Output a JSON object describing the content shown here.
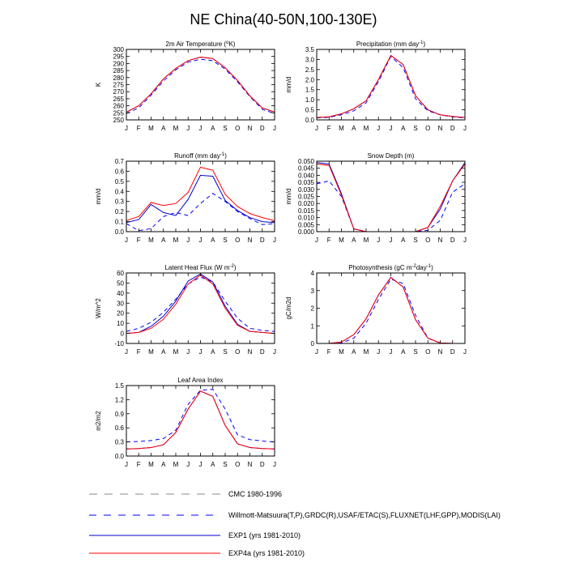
{
  "title": "NE China(40-50N,100-130E)",
  "months": [
    "J",
    "F",
    "M",
    "A",
    "M",
    "J",
    "J",
    "A",
    "S",
    "O",
    "N",
    "D",
    "J"
  ],
  "series_styles": {
    "cmc": {
      "color": "#8a8a8a",
      "dash": "7,5"
    },
    "obs": {
      "color": "#0000ff",
      "dash": "5,4"
    },
    "exp1": {
      "color": "#0000cc",
      "dash": ""
    },
    "exp4a": {
      "color": "#ff0000",
      "dash": ""
    }
  },
  "legend": [
    {
      "key": "cmc",
      "label": "CMC 1980-1996"
    },
    {
      "key": "obs",
      "label": "Willmott-Matsuura(T,P),GRDC(R),USAF/ETAC(S),FLUXNET(LHF,GPP),MODIS(LAI)"
    },
    {
      "key": "exp1",
      "label": "EXP1 (yrs 1981-2010)"
    },
    {
      "key": "exp4a",
      "label": "EXP4a (yrs 1981-2010)"
    }
  ],
  "chart_data": [
    {
      "type": "line",
      "title": "2m Air Temperature (°K)",
      "ylabel": "K",
      "ylim": [
        250,
        300
      ],
      "yticks": [
        250,
        255,
        260,
        265,
        270,
        275,
        280,
        285,
        290,
        295,
        300
      ],
      "x": [
        "J",
        "F",
        "M",
        "A",
        "M",
        "J",
        "J",
        "A",
        "S",
        "O",
        "N",
        "D",
        "J"
      ],
      "series": [
        {
          "key": "obs",
          "values": [
            254.5,
            258.5,
            267.5,
            277.5,
            285.5,
            291,
            293,
            292,
            286,
            277,
            266.5,
            257.5,
            254.5
          ]
        },
        {
          "key": "exp1",
          "values": [
            255.5,
            260,
            268.5,
            279,
            286.5,
            292,
            294.5,
            293.5,
            287,
            278,
            267,
            258.5,
            255.5
          ]
        },
        {
          "key": "exp4a",
          "values": [
            255.5,
            260,
            268.5,
            279,
            286.5,
            292,
            294.5,
            293.5,
            287,
            278,
            267,
            258.5,
            255.5
          ]
        }
      ]
    },
    {
      "type": "line",
      "title": "Precipitation (mm day-1)",
      "ylabel": "mm/d",
      "ylim": [
        0,
        3.5
      ],
      "yticks": [
        0.0,
        0.5,
        1.0,
        1.5,
        2.0,
        2.5,
        3.0,
        3.5
      ],
      "x": [
        "J",
        "F",
        "M",
        "A",
        "M",
        "J",
        "J",
        "A",
        "S",
        "O",
        "N",
        "D",
        "J"
      ],
      "series": [
        {
          "key": "obs",
          "values": [
            0.1,
            0.13,
            0.25,
            0.45,
            0.85,
            1.9,
            3.15,
            2.6,
            1.05,
            0.45,
            0.25,
            0.15,
            0.1
          ]
        },
        {
          "key": "exp1",
          "values": [
            0.12,
            0.15,
            0.3,
            0.55,
            0.95,
            2.0,
            3.2,
            2.75,
            1.2,
            0.5,
            0.25,
            0.17,
            0.12
          ]
        },
        {
          "key": "exp4a",
          "values": [
            0.12,
            0.15,
            0.3,
            0.55,
            0.95,
            2.0,
            3.2,
            2.75,
            1.2,
            0.5,
            0.25,
            0.17,
            0.12
          ]
        }
      ]
    },
    {
      "type": "line",
      "title": "Runoff (mm day-1)",
      "ylabel": "mm/d",
      "ylim": [
        0,
        0.7
      ],
      "yticks": [
        0.0,
        0.1,
        0.2,
        0.3,
        0.4,
        0.5,
        0.6,
        0.7
      ],
      "x": [
        "J",
        "F",
        "M",
        "A",
        "M",
        "J",
        "J",
        "A",
        "S",
        "O",
        "N",
        "D",
        "J"
      ],
      "series": [
        {
          "key": "obs",
          "values": [
            0.08,
            0.01,
            0.03,
            0.15,
            0.19,
            0.16,
            0.28,
            0.38,
            0.3,
            0.2,
            0.13,
            0.07,
            0.08
          ]
        },
        {
          "key": "exp1",
          "values": [
            0.09,
            0.12,
            0.27,
            0.19,
            0.16,
            0.32,
            0.56,
            0.55,
            0.31,
            0.21,
            0.14,
            0.1,
            0.09
          ]
        },
        {
          "key": "exp4a",
          "values": [
            0.11,
            0.15,
            0.29,
            0.26,
            0.28,
            0.39,
            0.64,
            0.61,
            0.37,
            0.25,
            0.18,
            0.14,
            0.11
          ]
        }
      ]
    },
    {
      "type": "line",
      "title": "Snow Depth (m)",
      "ylabel": "mm/d",
      "ylim": [
        0,
        0.05
      ],
      "yticks": [
        0.0,
        0.005,
        0.01,
        0.015,
        0.02,
        0.025,
        0.03,
        0.035,
        0.04,
        0.045,
        0.05
      ],
      "ytick_labels": [
        "0.000",
        "0.005",
        "0.010",
        "0.015",
        "0.020",
        "0.025",
        "0.030",
        "0.035",
        "0.040",
        "0.045",
        "0.050"
      ],
      "x": [
        "J",
        "F",
        "M",
        "A",
        "M",
        "J",
        "J",
        "A",
        "S",
        "O",
        "N",
        "D",
        "J"
      ],
      "series": [
        {
          "key": "obs",
          "values": [
            0.034,
            0.036,
            0.025,
            0.002,
            0.0,
            0.0,
            0.0,
            0.0,
            0.0,
            0.001,
            0.008,
            0.028,
            0.034
          ]
        },
        {
          "key": "exp1",
          "values": [
            0.049,
            0.048,
            0.027,
            0.002,
            0.0,
            0.0,
            0.0,
            0.0,
            0.0,
            0.003,
            0.016,
            0.036,
            0.049
          ]
        },
        {
          "key": "exp4a",
          "values": [
            0.048,
            0.047,
            0.026,
            0.002,
            0.0,
            0.0,
            0.0,
            0.0,
            0.0,
            0.003,
            0.018,
            0.036,
            0.048
          ]
        }
      ]
    },
    {
      "type": "line",
      "title": "Latent Heat Flux (W m-2)",
      "ylabel": "W/m^2",
      "ylim": [
        -10,
        60
      ],
      "yticks": [
        -10,
        0,
        10,
        20,
        30,
        40,
        50,
        60
      ],
      "x": [
        "J",
        "F",
        "M",
        "A",
        "M",
        "J",
        "J",
        "A",
        "S",
        "O",
        "N",
        "D",
        "J"
      ],
      "series": [
        {
          "key": "obs",
          "values": [
            2,
            5,
            11,
            21,
            34,
            49,
            56,
            51,
            32,
            15,
            5,
            3,
            2
          ]
        },
        {
          "key": "exp1",
          "values": [
            0,
            1,
            7,
            17,
            32,
            52,
            59,
            51,
            27,
            9,
            2,
            1,
            0
          ]
        },
        {
          "key": "exp4a",
          "values": [
            0,
            1,
            5,
            14,
            29,
            49,
            58,
            49,
            25,
            8,
            2,
            1,
            0
          ]
        }
      ]
    },
    {
      "type": "line",
      "title": "Photosynthesis (gC m-2day-1)",
      "ylabel": "gC/m2d",
      "ylim": [
        0,
        4
      ],
      "yticks": [
        0.0,
        1.0,
        2.0,
        3.0,
        4.0
      ],
      "x": [
        "J",
        "F",
        "M",
        "A",
        "M",
        "J",
        "J",
        "A",
        "S",
        "O",
        "N",
        "D",
        "J"
      ],
      "series": [
        {
          "key": "obs",
          "values": [
            0.0,
            0.0,
            0.02,
            0.3,
            1.15,
            2.5,
            3.65,
            3.4,
            1.6,
            0.3,
            0.02,
            0.0,
            0.0
          ]
        },
        {
          "key": "exp1",
          "values": [
            0.0,
            0.0,
            0.08,
            0.5,
            1.4,
            2.75,
            3.75,
            3.2,
            1.35,
            0.3,
            0.03,
            0.0,
            0.0
          ]
        },
        {
          "key": "exp4a",
          "values": [
            0.0,
            0.0,
            0.08,
            0.5,
            1.4,
            2.75,
            3.75,
            3.2,
            1.35,
            0.3,
            0.03,
            0.0,
            0.0
          ]
        }
      ]
    },
    {
      "type": "line",
      "title": "Leaf Area Index",
      "ylabel": "m2/m2",
      "ylim": [
        0,
        1.5
      ],
      "yticks": [
        0.0,
        0.3,
        0.6,
        0.9,
        1.2,
        1.5
      ],
      "x": [
        "J",
        "F",
        "M",
        "A",
        "M",
        "J",
        "J",
        "A",
        "S",
        "O",
        "N",
        "D",
        "J"
      ],
      "series": [
        {
          "key": "obs",
          "values": [
            0.3,
            0.31,
            0.33,
            0.37,
            0.55,
            1.1,
            1.4,
            1.42,
            1.0,
            0.45,
            0.35,
            0.32,
            0.3
          ]
        },
        {
          "key": "exp1",
          "values": [
            0.15,
            0.16,
            0.18,
            0.24,
            0.5,
            1.0,
            1.38,
            1.27,
            0.65,
            0.26,
            0.18,
            0.16,
            0.15
          ]
        },
        {
          "key": "exp4a",
          "values": [
            0.15,
            0.16,
            0.18,
            0.24,
            0.5,
            1.0,
            1.38,
            1.27,
            0.65,
            0.26,
            0.18,
            0.16,
            0.15
          ]
        }
      ]
    }
  ]
}
